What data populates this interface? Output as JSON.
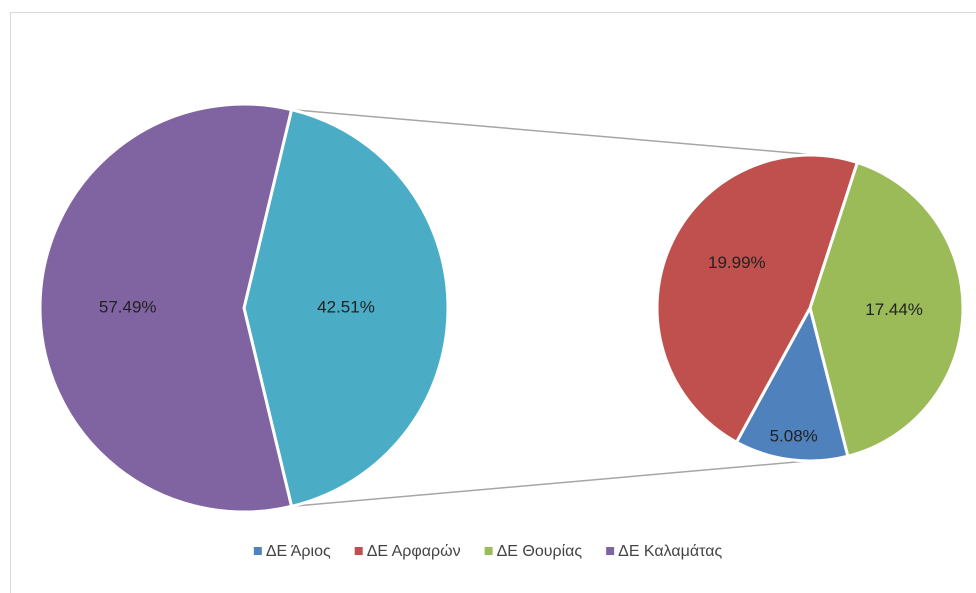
{
  "chart_data": {
    "type": "pie-of-pie",
    "categories": [
      "ΔΕ Άριος",
      "ΔΕ Αρφαρών",
      "ΔΕ Θουρίας",
      "ΔΕ Καλαμάτας"
    ],
    "values": [
      5.08,
      19.99,
      17.44,
      57.49
    ],
    "value_labels": [
      "5.08%",
      "19.99%",
      "17.44%",
      "57.49%"
    ],
    "colors": [
      "#4f81bd",
      "#c0504d",
      "#9bbb59",
      "#8064a2"
    ],
    "other_value": 42.51,
    "other_value_label": "42.51%",
    "other_color": "#4bacc6",
    "legend": "bottom"
  }
}
